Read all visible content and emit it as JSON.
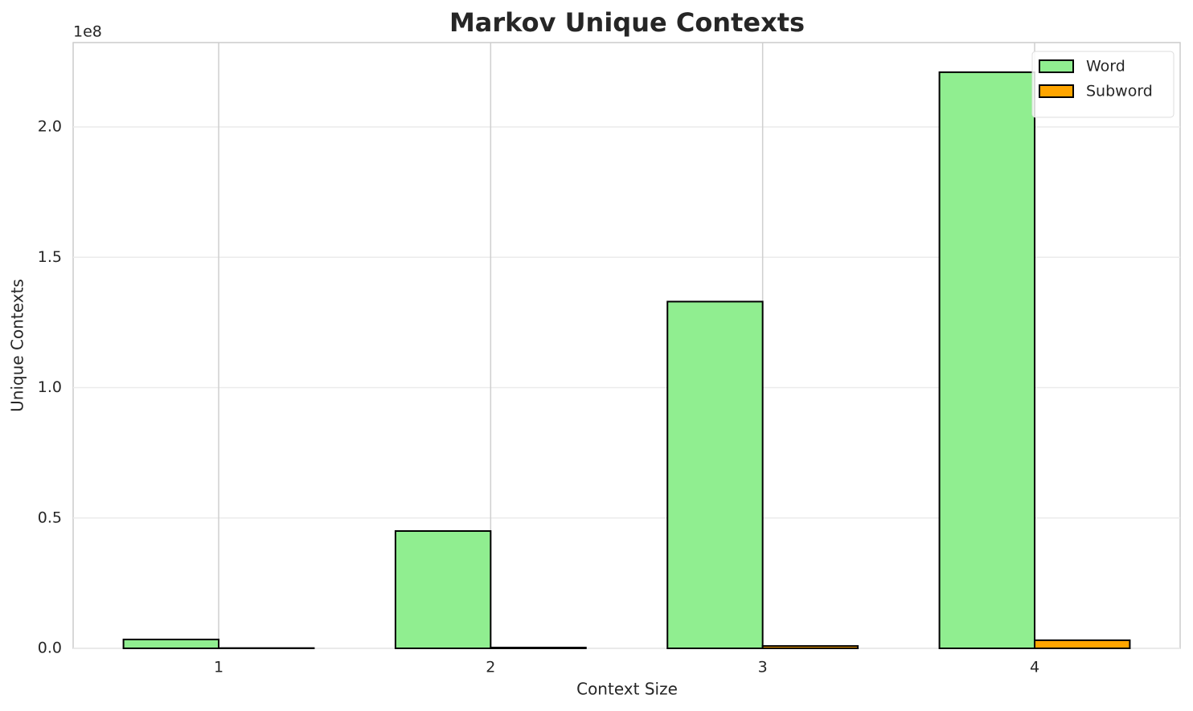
{
  "chart_data": {
    "type": "bar",
    "title": "Markov Unique Contexts",
    "x_label": "Context Size",
    "y_label": "Unique Contexts",
    "y_offset_label": "1e8",
    "x": [
      1,
      2,
      3,
      4
    ],
    "xlim": [
      0.465,
      4.535
    ],
    "xticks": [
      1,
      2,
      3,
      4
    ],
    "ylim": [
      0,
      232360000
    ],
    "yticks": [
      {
        "value": 0,
        "label": "0.0"
      },
      {
        "value": 50000000,
        "label": "0.5"
      },
      {
        "value": 100000000,
        "label": "1.0"
      },
      {
        "value": 150000000,
        "label": "1.5"
      },
      {
        "value": 200000000,
        "label": "2.0"
      }
    ],
    "grid": true,
    "legend": "upper right",
    "bar_width": 0.35,
    "series": [
      {
        "name": "Word",
        "color": "#90ee90",
        "values": [
          3400000,
          45000000,
          133000000,
          221000000
        ]
      },
      {
        "name": "Subword",
        "color": "#ffa500",
        "values": [
          100000,
          300000,
          900000,
          3100000
        ]
      }
    ]
  }
}
